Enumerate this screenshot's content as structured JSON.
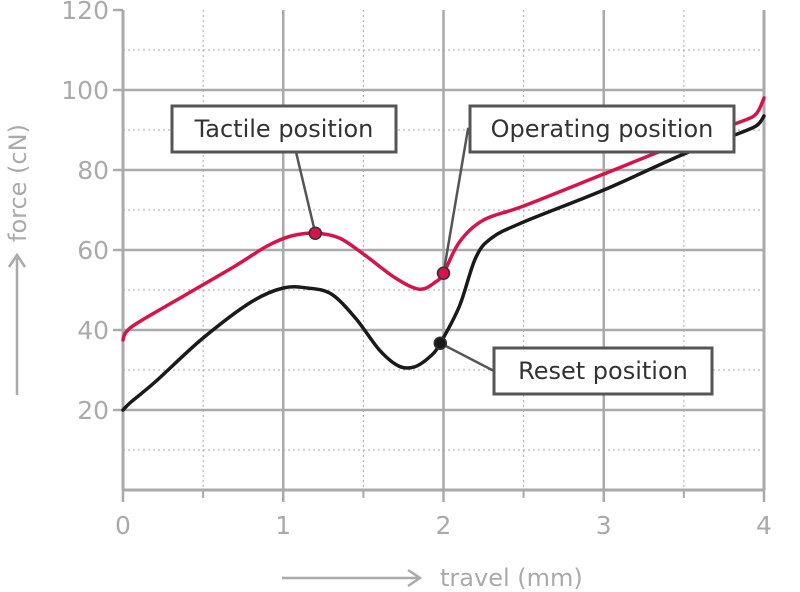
{
  "chart_data": {
    "type": "line",
    "xlabel": "travel (mm)",
    "ylabel": "force (cN)",
    "xlim": [
      0,
      4
    ],
    "ylim": [
      0,
      120
    ],
    "x_ticks": [
      0,
      1,
      2,
      3,
      4
    ],
    "x_tick_labels": [
      "0",
      "1",
      "2",
      "3",
      "4"
    ],
    "y_ticks": [
      20,
      40,
      60,
      80,
      100,
      120
    ],
    "y_tick_labels": [
      "20",
      "40",
      "60",
      "80",
      "100",
      "120"
    ],
    "grid": true,
    "colors": {
      "upper": "#d6134b",
      "lower": "#1a1a1a",
      "grid": "#aaaaaa",
      "frame": "#aaaaaa"
    },
    "series": [
      {
        "color": "#d6134b",
        "points": [
          [
            0,
            37.5
          ],
          [
            0.02,
            39.5
          ],
          [
            0.1,
            42
          ],
          [
            0.4,
            49
          ],
          [
            0.7,
            56
          ],
          [
            0.9,
            61
          ],
          [
            1.05,
            63.5
          ],
          [
            1.2,
            64.2
          ],
          [
            1.35,
            63
          ],
          [
            1.5,
            59
          ],
          [
            1.7,
            53
          ],
          [
            1.85,
            50.2
          ],
          [
            1.95,
            52
          ],
          [
            2.0,
            54.2
          ],
          [
            2.1,
            62
          ],
          [
            2.25,
            67.5
          ],
          [
            2.5,
            71
          ],
          [
            3.0,
            79
          ],
          [
            3.5,
            87
          ],
          [
            3.85,
            92
          ],
          [
            3.95,
            94
          ],
          [
            4.0,
            98
          ]
        ]
      },
      {
        "color": "#1a1a1a",
        "points": [
          [
            0,
            20
          ],
          [
            0.05,
            22
          ],
          [
            0.2,
            27
          ],
          [
            0.5,
            38
          ],
          [
            0.8,
            47
          ],
          [
            1.0,
            50.5
          ],
          [
            1.15,
            50.5
          ],
          [
            1.3,
            49
          ],
          [
            1.45,
            43
          ],
          [
            1.6,
            35
          ],
          [
            1.72,
            31
          ],
          [
            1.82,
            30.8
          ],
          [
            1.92,
            33.5
          ],
          [
            1.98,
            36.7
          ],
          [
            2.1,
            46
          ],
          [
            2.2,
            58
          ],
          [
            2.3,
            63
          ],
          [
            2.5,
            67
          ],
          [
            3.0,
            75
          ],
          [
            3.5,
            84
          ],
          [
            3.8,
            88.5
          ],
          [
            3.95,
            91
          ],
          [
            4.0,
            93.5
          ]
        ]
      }
    ],
    "annotations": [
      {
        "label": "Tactile position",
        "point": [
          1.2,
          64.2
        ],
        "series": 0
      },
      {
        "label": "Operating position",
        "point": [
          2.0,
          54.2
        ],
        "series": 0
      },
      {
        "label": "Reset position",
        "point": [
          1.98,
          36.7
        ],
        "series": 1
      }
    ]
  }
}
